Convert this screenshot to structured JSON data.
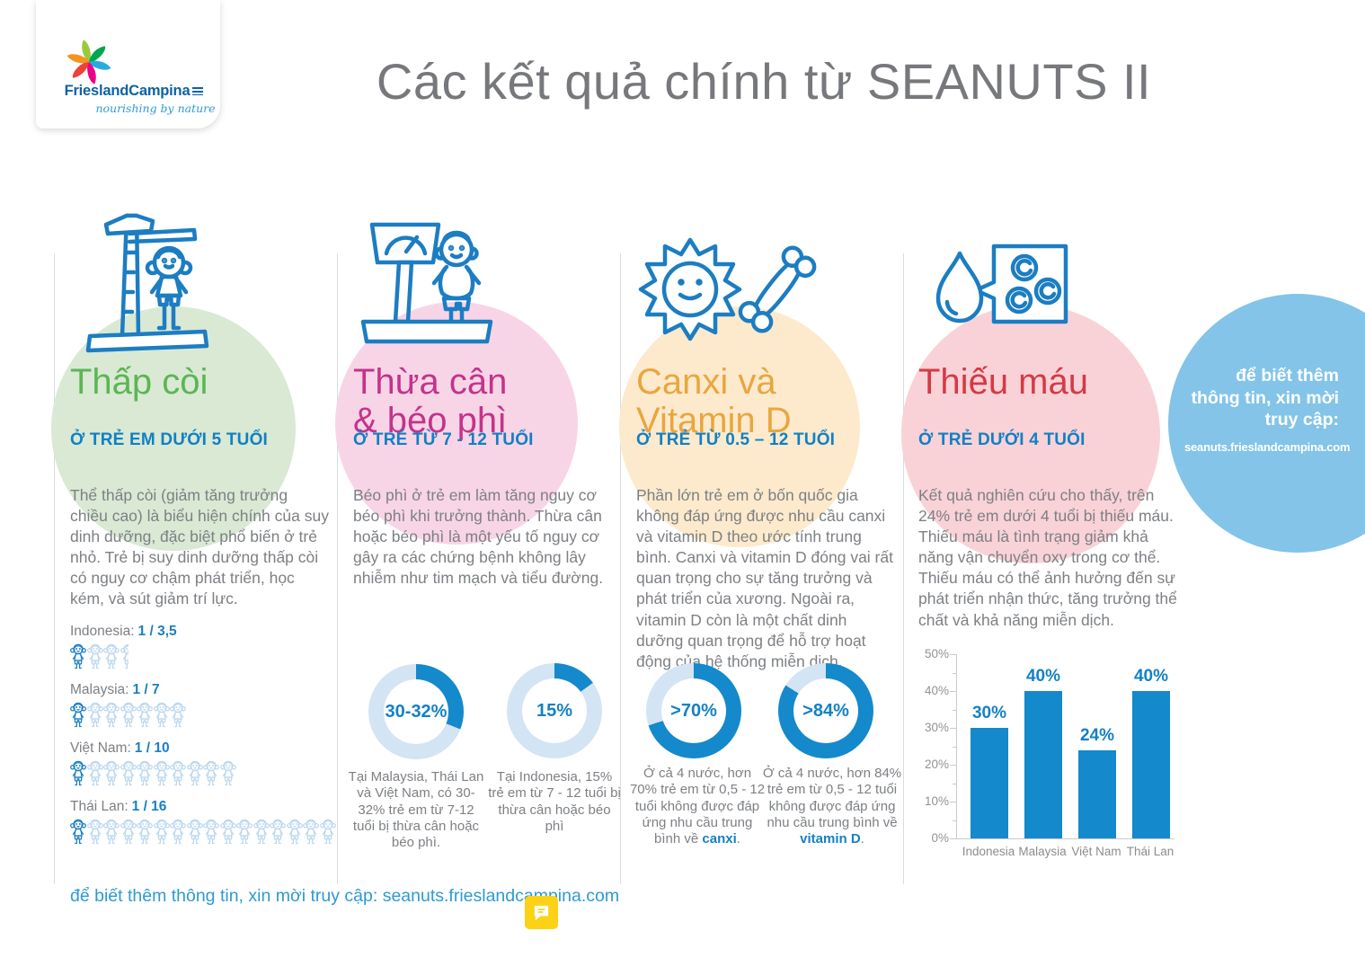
{
  "header": {
    "brand": "FrieslandCampina",
    "tagline": "nourishing by nature",
    "title": "Các kết quả chính từ SEANUTS II"
  },
  "columns": [
    {
      "title_line1": "Thấp còi",
      "title_line2": "",
      "subtitle": "Ở TRẺ EM DƯỚI 5 TUỔI",
      "body": "Thể thấp còi (giảm tăng trưởng chiều cao) là biểu hiện chính của suy dinh dưỡng, đặc biệt phổ biến ở trẻ nhỏ. Trẻ bị suy dinh dưỡng thấp còi có nguy cơ chậm phát triển, học kém, và sút giảm trí lực."
    },
    {
      "title_line1": "Thừa cân",
      "title_line2": "& béo phì",
      "subtitle": "Ở TRẺ TỪ 7 - 12 TUỔI",
      "body": "Béo phì ở trẻ em làm tăng nguy cơ béo phì khi trưởng thành. Thừa cân hoặc béo phì là một yếu tố nguy cơ gây ra các chứng bệnh không lây nhiễm như tim mạch và tiểu đường."
    },
    {
      "title_line1": "Canxi và",
      "title_line2": "Vitamin D",
      "subtitle": "Ở TRẺ TỪ 0.5 – 12 TUỔI",
      "body": "Phần lớn trẻ em ở bốn quốc gia không đáp ứng được nhu cầu canxi và vitamin D theo ước tính trung bình. Canxi và vitamin D đóng vai rất quan trọng cho sự tăng trưởng và phát triển của xương. Ngoài ra, vitamin D còn là một chất dinh dưỡng quan trọng để hỗ trợ hoạt động của hệ thống miễn dịch."
    },
    {
      "title_line1": "Thiếu máu",
      "title_line2": "",
      "subtitle": "Ở TRẺ DƯỚI 4 TUỔI",
      "body": "Kết quả nghiên cứu cho thấy, trên 24% trẻ em dưới 4 tuổi bị thiếu máu. Thiếu máu là tình trạng giảm khả năng vận chuyển oxy trong cơ thể. Thiếu máu có thể ảnh hưởng đến sự phát triển nhận thức, tăng trưởng thể chất và khả năng miễn dịch."
    }
  ],
  "chart_data": [
    {
      "type": "pictograph",
      "id": "stunting-ratio",
      "categories": [
        "Indonesia",
        "Malaysia",
        "Việt Nam",
        "Thái Lan"
      ],
      "value_labels": [
        "1 / 3,5",
        "1 / 7",
        "1 / 10",
        "1 / 16"
      ],
      "counts": [
        3.5,
        7,
        10,
        16
      ],
      "highlighted_per_row": 1
    },
    {
      "type": "pie",
      "id": "overweight-malaysia-thailan-vietnam",
      "center_label": "30-32%",
      "percent": 31,
      "caption": "Tại Malaysia, Thái Lan và Việt Nam, có 30-32% trẻ em từ 7-12 tuổi bị thừa cân hoặc béo phì.",
      "caption_bold": "",
      "caption_suffix": ""
    },
    {
      "type": "pie",
      "id": "overweight-indonesia",
      "center_label": "15%",
      "percent": 15,
      "caption": "Tại Indonesia, 15% trẻ em từ 7 - 12 tuổi bị thừa cân hoặc béo phì",
      "caption_bold": "",
      "caption_suffix": ""
    },
    {
      "type": "pie",
      "id": "calcium-inadequate",
      "center_label": ">70%",
      "percent": 70,
      "caption": "Ở cả 4 nước, hơn 70% trẻ em từ 0,5 - 12 tuổi không được đáp ứng nhu cầu trung bình về ",
      "caption_bold": "canxi",
      "caption_suffix": "."
    },
    {
      "type": "pie",
      "id": "vitamin-d-inadequate",
      "center_label": ">84%",
      "percent": 84,
      "caption": "Ở cả 4 nước, hơn 84% trẻ em từ 0,5 - 12 tuổi không được đáp ứng nhu cầu trung bình về ",
      "caption_bold": "vitamin D",
      "caption_suffix": "."
    },
    {
      "type": "bar",
      "id": "anemia-under-4",
      "categories": [
        "Indonesia",
        "Malaysia",
        "Việt Nam",
        "Thái Lan"
      ],
      "values": [
        30,
        40,
        24,
        40
      ],
      "value_labels": [
        "30%",
        "40%",
        "24%",
        "40%"
      ],
      "yticks": [
        "0%",
        "10%",
        "20%",
        "30%",
        "40%",
        "50%"
      ],
      "ylim": [
        0,
        50
      ]
    }
  ],
  "info_circle": {
    "line1": "để biết thêm",
    "line2": "thông tin, xin mời",
    "line3": "truy cập:",
    "url": "seanuts.frieslandcampina.com"
  },
  "footer": {
    "text": "để biết thêm thông tin, xin mời truy cập: seanuts.frieslandcampina.com"
  },
  "colors": {
    "stunting_green": "#5cb554",
    "overweight_magenta": "#c4338b",
    "calcium_orange": "#e9a63f",
    "anemia_red": "#d43a44",
    "info_blue": "#83c4e8",
    "accent_blue": "#1180c4",
    "chart_blue": "#1489cb",
    "chart_track": "#d3e4f4",
    "icon_stroke": "#1c7dc2",
    "footer_blue": "#2d9ad3",
    "note_yellow": "#fdd116"
  }
}
